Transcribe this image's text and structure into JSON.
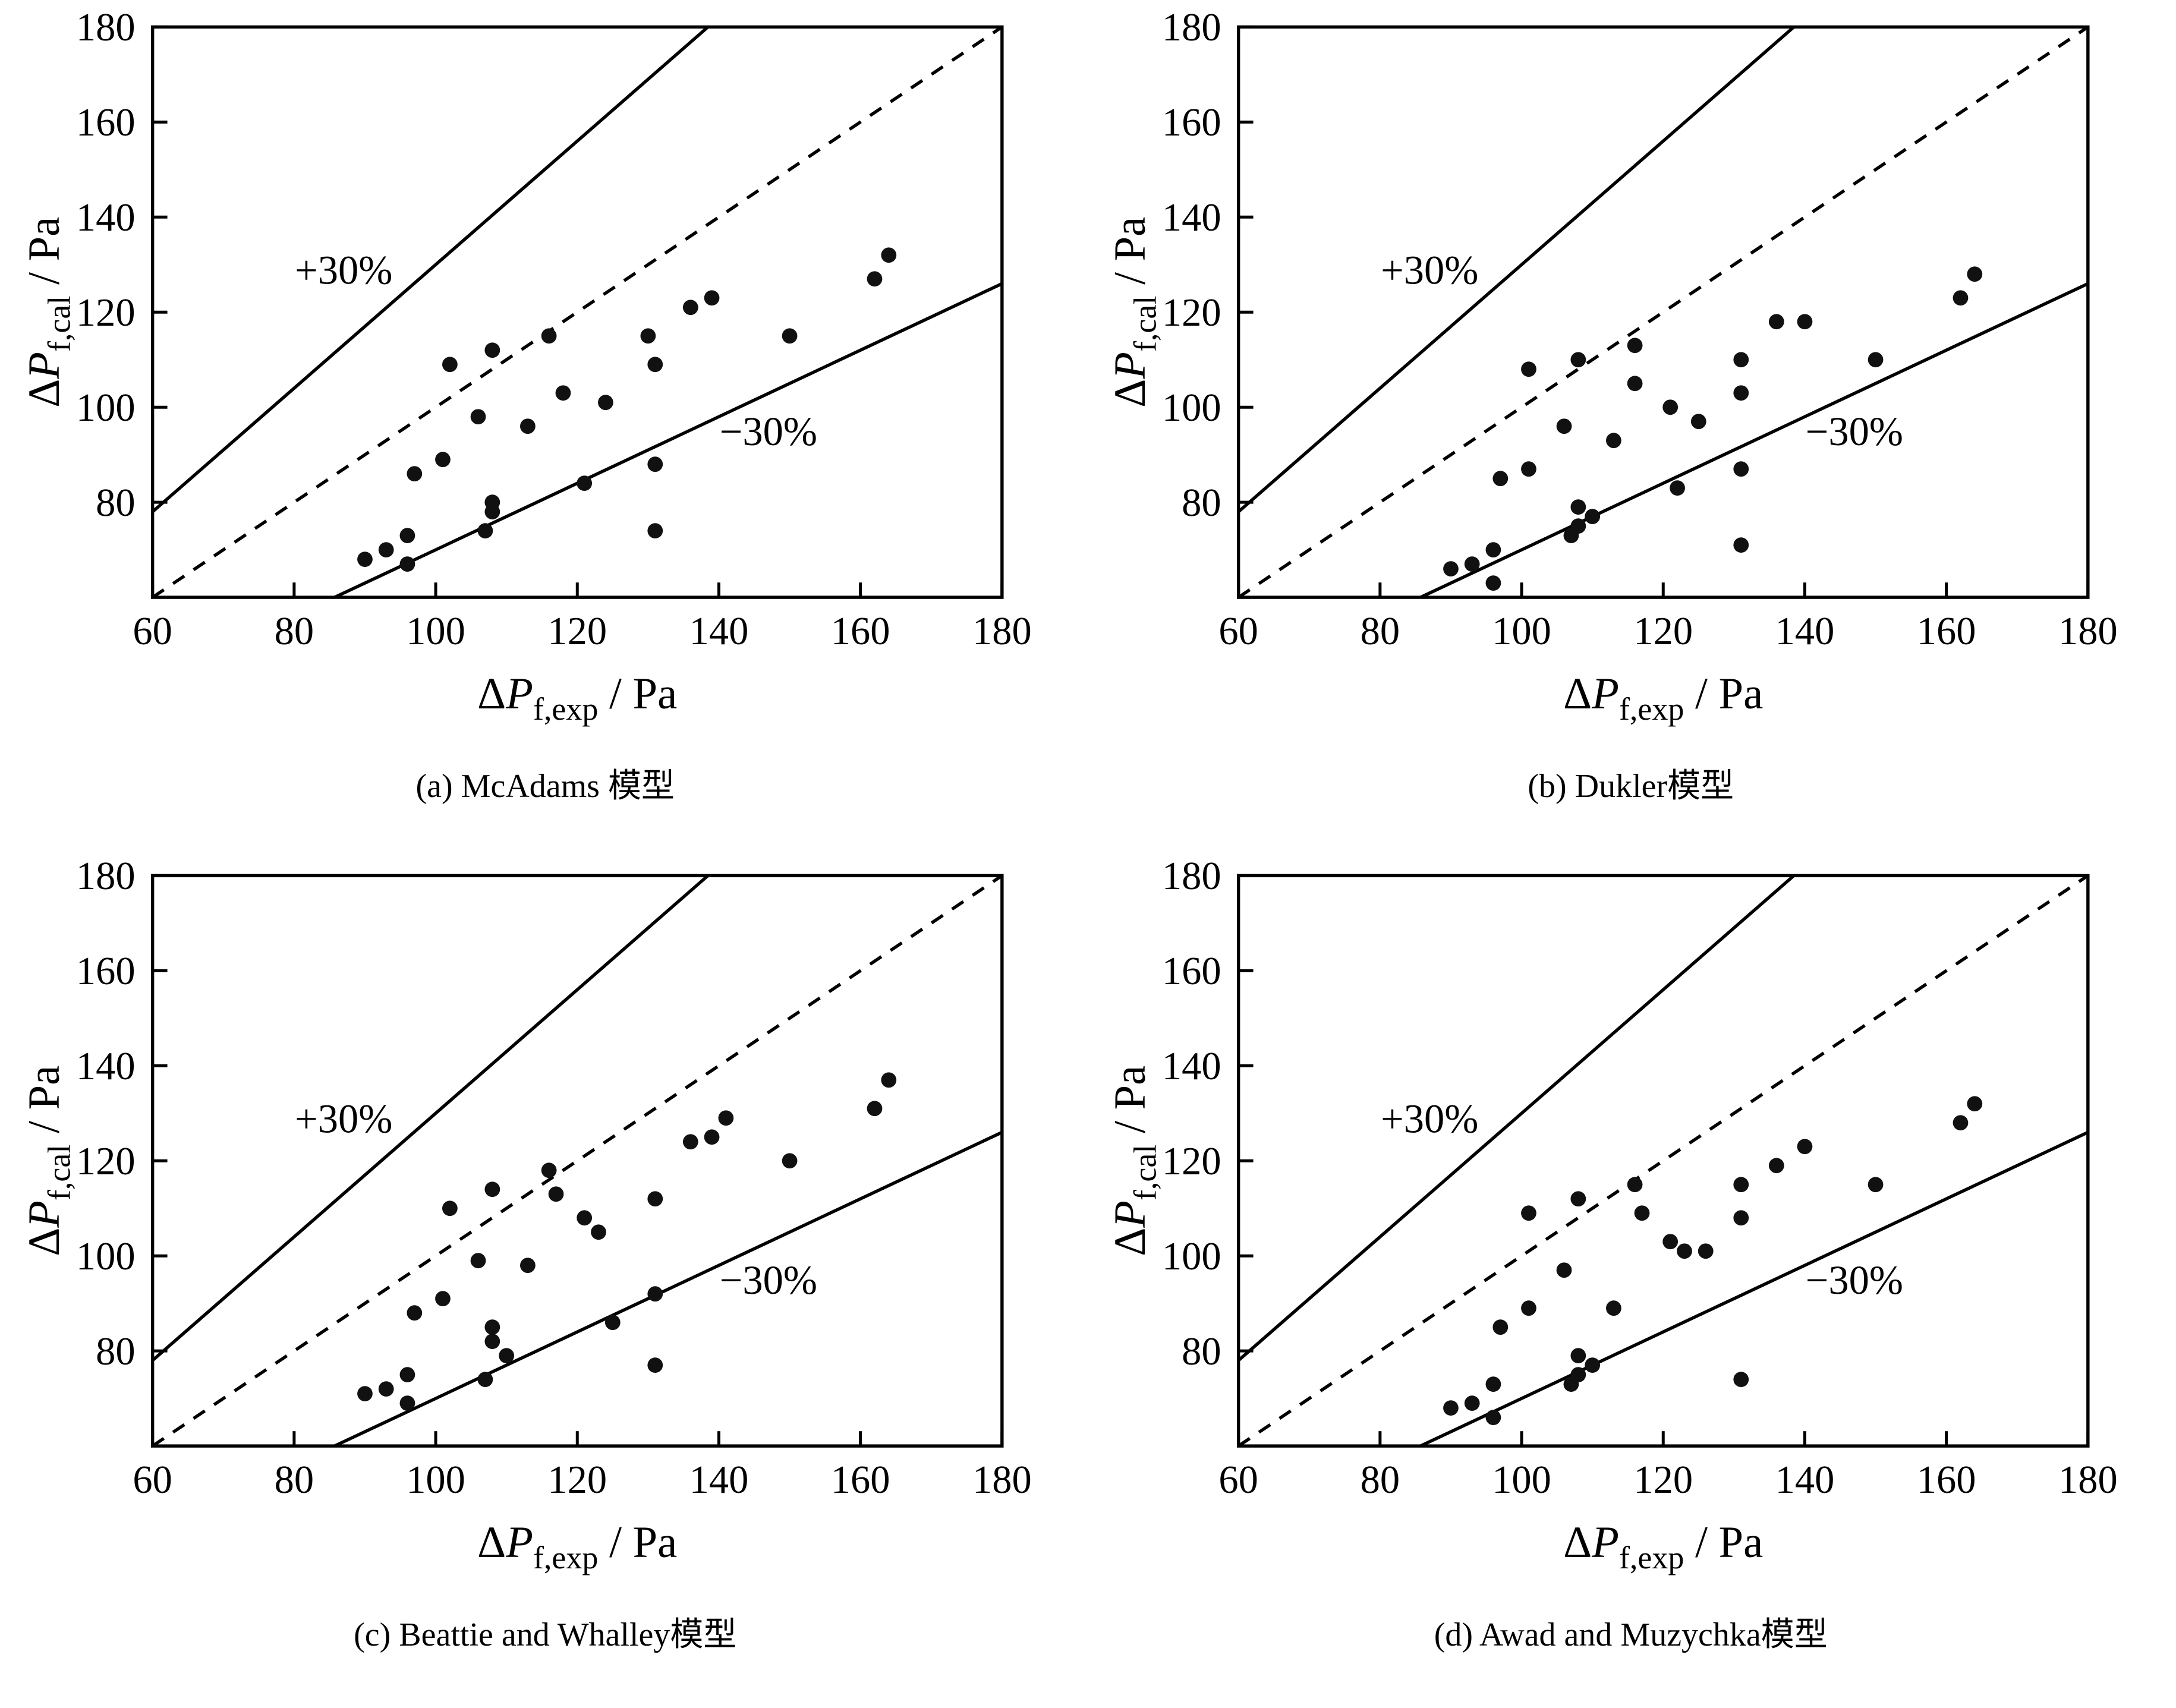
{
  "figure": {
    "background": "#ffffff",
    "marker_color": "#111111",
    "line_color": "#000000"
  },
  "chart_data": [
    {
      "type": "scatter",
      "caption": "(a) McAdams 模型",
      "xlabel": {
        "pre": "ΔP",
        "sub": "f,exp",
        "post": " / Pa"
      },
      "ylabel": {
        "pre": "ΔP",
        "sub": "f,cal",
        "post": " / Pa"
      },
      "xlim": [
        60,
        180
      ],
      "ylim": [
        60,
        180
      ],
      "xticks": [
        60,
        80,
        100,
        120,
        140,
        160,
        180
      ],
      "yticks": [
        80,
        100,
        120,
        140,
        160,
        180
      ],
      "grid": false,
      "reference_lines": [
        {
          "label": "+30%",
          "slope": 1.3,
          "style": "solid",
          "label_pos": [
            87,
            126
          ]
        },
        {
          "label": "",
          "slope": 1.0,
          "style": "dashed",
          "label_pos": null
        },
        {
          "label": "−30%",
          "slope": 0.7,
          "style": "solid",
          "label_pos": [
            147,
            92
          ]
        }
      ],
      "points": [
        [
          90,
          68
        ],
        [
          93,
          70
        ],
        [
          96,
          67
        ],
        [
          96,
          73
        ],
        [
          97,
          86
        ],
        [
          101,
          89
        ],
        [
          102,
          109
        ],
        [
          106,
          98
        ],
        [
          107,
          74
        ],
        [
          108,
          80
        ],
        [
          108,
          78
        ],
        [
          108,
          112
        ],
        [
          113,
          96
        ],
        [
          116,
          115
        ],
        [
          118,
          103
        ],
        [
          121,
          84
        ],
        [
          124,
          101
        ],
        [
          130,
          115
        ],
        [
          131,
          109
        ],
        [
          131,
          88
        ],
        [
          131,
          74
        ],
        [
          136,
          121
        ],
        [
          139,
          123
        ],
        [
          150,
          115
        ],
        [
          162,
          127
        ],
        [
          164,
          132
        ]
      ]
    },
    {
      "type": "scatter",
      "caption": "(b) Dukler模型",
      "xlabel": {
        "pre": "ΔP",
        "sub": "f,exp",
        "post": " / Pa"
      },
      "ylabel": {
        "pre": "ΔP",
        "sub": "f,cal",
        "post": " / Pa"
      },
      "xlim": [
        60,
        180
      ],
      "ylim": [
        60,
        180
      ],
      "xticks": [
        60,
        80,
        100,
        120,
        140,
        160,
        180
      ],
      "yticks": [
        80,
        100,
        120,
        140,
        160,
        180
      ],
      "grid": false,
      "reference_lines": [
        {
          "label": "+30%",
          "slope": 1.3,
          "style": "solid",
          "label_pos": [
            87,
            126
          ]
        },
        {
          "label": "",
          "slope": 1.0,
          "style": "dashed",
          "label_pos": null
        },
        {
          "label": "−30%",
          "slope": 0.7,
          "style": "solid",
          "label_pos": [
            147,
            92
          ]
        }
      ],
      "points": [
        [
          90,
          66
        ],
        [
          93,
          67
        ],
        [
          96,
          63
        ],
        [
          96,
          70
        ],
        [
          97,
          85
        ],
        [
          101,
          87
        ],
        [
          101,
          108
        ],
        [
          106,
          96
        ],
        [
          107,
          73
        ],
        [
          108,
          79
        ],
        [
          108,
          75
        ],
        [
          108,
          110
        ],
        [
          110,
          77
        ],
        [
          113,
          93
        ],
        [
          116,
          113
        ],
        [
          116,
          105
        ],
        [
          121,
          100
        ],
        [
          122,
          83
        ],
        [
          125,
          97
        ],
        [
          131,
          110
        ],
        [
          131,
          103
        ],
        [
          131,
          87
        ],
        [
          131,
          71
        ],
        [
          136,
          118
        ],
        [
          140,
          118
        ],
        [
          150,
          110
        ],
        [
          162,
          123
        ],
        [
          164,
          128
        ]
      ]
    },
    {
      "type": "scatter",
      "caption": "(c) Beattie and Whalley模型",
      "xlabel": {
        "pre": "ΔP",
        "sub": "f,exp",
        "post": " / Pa"
      },
      "ylabel": {
        "pre": "ΔP",
        "sub": "f,cal",
        "post": " / Pa"
      },
      "xlim": [
        60,
        180
      ],
      "ylim": [
        60,
        180
      ],
      "xticks": [
        60,
        80,
        100,
        120,
        140,
        160,
        180
      ],
      "yticks": [
        80,
        100,
        120,
        140,
        160,
        180
      ],
      "grid": false,
      "reference_lines": [
        {
          "label": "+30%",
          "slope": 1.3,
          "style": "solid",
          "label_pos": [
            87,
            126
          ]
        },
        {
          "label": "",
          "slope": 1.0,
          "style": "dashed",
          "label_pos": null
        },
        {
          "label": "−30%",
          "slope": 0.7,
          "style": "solid",
          "label_pos": [
            147,
            92
          ]
        }
      ],
      "points": [
        [
          90,
          71
        ],
        [
          93,
          72
        ],
        [
          96,
          69
        ],
        [
          96,
          75
        ],
        [
          97,
          88
        ],
        [
          101,
          91
        ],
        [
          102,
          110
        ],
        [
          106,
          99
        ],
        [
          107,
          74
        ],
        [
          108,
          85
        ],
        [
          108,
          82
        ],
        [
          108,
          114
        ],
        [
          110,
          79
        ],
        [
          113,
          98
        ],
        [
          116,
          118
        ],
        [
          117,
          113
        ],
        [
          121,
          108
        ],
        [
          123,
          105
        ],
        [
          125,
          86
        ],
        [
          131,
          112
        ],
        [
          131,
          92
        ],
        [
          131,
          77
        ],
        [
          136,
          124
        ],
        [
          139,
          125
        ],
        [
          141,
          129
        ],
        [
          150,
          120
        ],
        [
          162,
          131
        ],
        [
          164,
          137
        ]
      ]
    },
    {
      "type": "scatter",
      "caption": "(d) Awad and Muzychka模型",
      "xlabel": {
        "pre": "ΔP",
        "sub": "f,exp",
        "post": " / Pa"
      },
      "ylabel": {
        "pre": "ΔP",
        "sub": "f,cal",
        "post": " / Pa"
      },
      "xlim": [
        60,
        180
      ],
      "ylim": [
        60,
        180
      ],
      "xticks": [
        60,
        80,
        100,
        120,
        140,
        160,
        180
      ],
      "yticks": [
        80,
        100,
        120,
        140,
        160,
        180
      ],
      "grid": false,
      "reference_lines": [
        {
          "label": "+30%",
          "slope": 1.3,
          "style": "solid",
          "label_pos": [
            87,
            126
          ]
        },
        {
          "label": "",
          "slope": 1.0,
          "style": "dashed",
          "label_pos": null
        },
        {
          "label": "−30%",
          "slope": 0.7,
          "style": "solid",
          "label_pos": [
            147,
            92
          ]
        }
      ],
      "points": [
        [
          90,
          68
        ],
        [
          93,
          69
        ],
        [
          96,
          66
        ],
        [
          96,
          73
        ],
        [
          97,
          85
        ],
        [
          101,
          89
        ],
        [
          101,
          109
        ],
        [
          106,
          97
        ],
        [
          107,
          73
        ],
        [
          108,
          79
        ],
        [
          108,
          75
        ],
        [
          108,
          112
        ],
        [
          110,
          77
        ],
        [
          113,
          89
        ],
        [
          116,
          115
        ],
        [
          117,
          109
        ],
        [
          121,
          103
        ],
        [
          123,
          101
        ],
        [
          126,
          101
        ],
        [
          131,
          115
        ],
        [
          131,
          108
        ],
        [
          131,
          74
        ],
        [
          136,
          119
        ],
        [
          140,
          123
        ],
        [
          150,
          115
        ],
        [
          162,
          128
        ],
        [
          164,
          132
        ]
      ]
    }
  ]
}
